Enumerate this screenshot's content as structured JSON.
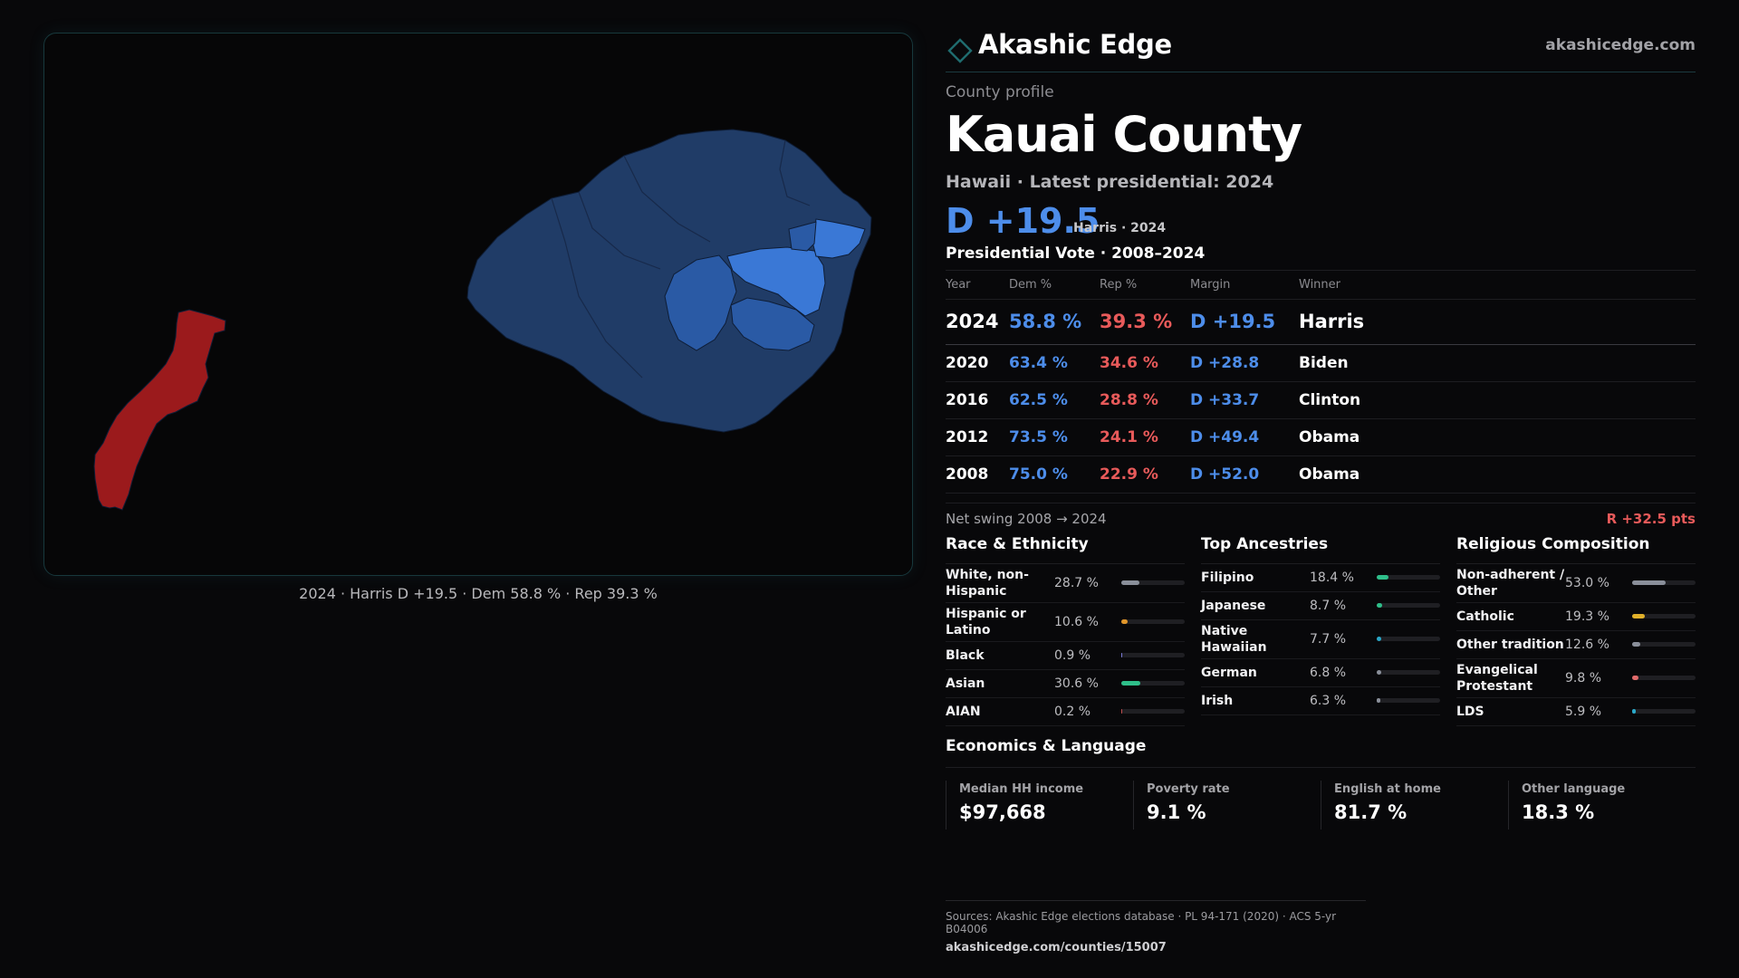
{
  "brand": {
    "name": "Akashic Edge",
    "url": "akashicedge.com"
  },
  "profile": {
    "eyebrow": "County profile",
    "county": "Kauai County",
    "subline": "Hawaii · Latest presidential: 2024",
    "headline_margin": "D +19.5",
    "headline_note": "Harris · 2024"
  },
  "map": {
    "caption": "2024 · Harris D +19.5 · Dem 58.8 % · Rep 39.3 %",
    "colors": {
      "dem_dark": "#203c67",
      "dem_mid": "#2a5aa5",
      "dem_bright": "#3a78d6",
      "rep": "#9b1a1c"
    }
  },
  "votes": {
    "title": "Presidential Vote · 2008–2024",
    "headers": {
      "year": "Year",
      "dem": "Dem %",
      "rep": "Rep %",
      "margin": "Margin",
      "winner": "Winner"
    },
    "rows": [
      {
        "year": "2024",
        "dem": "58.8 %",
        "rep": "39.3 %",
        "margin": "D +19.5",
        "winner": "Harris"
      },
      {
        "year": "2020",
        "dem": "63.4 %",
        "rep": "34.6 %",
        "margin": "D +28.8",
        "winner": "Biden"
      },
      {
        "year": "2016",
        "dem": "62.5 %",
        "rep": "28.8 %",
        "margin": "D +33.7",
        "winner": "Clinton"
      },
      {
        "year": "2012",
        "dem": "73.5 %",
        "rep": "24.1 %",
        "margin": "D +49.4",
        "winner": "Obama"
      },
      {
        "year": "2008",
        "dem": "75.0 %",
        "rep": "22.9 %",
        "margin": "D +52.0",
        "winner": "Obama"
      }
    ]
  },
  "swing": {
    "label": "Net swing 2008 → 2024",
    "value": "R +32.5 pts"
  },
  "race": {
    "title": "Race & Ethnicity",
    "items": [
      {
        "label": "White, non-Hispanic",
        "pct": "28.7 %",
        "value": 28.7,
        "color": "#8a8f9a"
      },
      {
        "label": "Hispanic or Latino",
        "pct": "10.6 %",
        "value": 10.6,
        "color": "#e0962a"
      },
      {
        "label": "Black",
        "pct": "0.9 %",
        "value": 0.9,
        "color": "#7c7cd8"
      },
      {
        "label": "Asian",
        "pct": "30.6 %",
        "value": 30.6,
        "color": "#2fbf8a"
      },
      {
        "label": "AIAN",
        "pct": "0.2 %",
        "value": 0.2,
        "color": "#c05050"
      }
    ]
  },
  "ancestry": {
    "title": "Top Ancestries",
    "items": [
      {
        "label": "Filipino",
        "pct": "18.4 %",
        "value": 18.4,
        "color": "#2fbf8a"
      },
      {
        "label": "Japanese",
        "pct": "8.7 %",
        "value": 8.7,
        "color": "#2fbf8a"
      },
      {
        "label": "Native Hawaiian",
        "pct": "7.7 %",
        "value": 7.7,
        "color": "#2aa8c8"
      },
      {
        "label": "German",
        "pct": "6.8 %",
        "value": 6.8,
        "color": "#8a8f9a"
      },
      {
        "label": "Irish",
        "pct": "6.3 %",
        "value": 6.3,
        "color": "#8a8f9a"
      }
    ]
  },
  "religion": {
    "title": "Religious Composition",
    "items": [
      {
        "label": "Non-adherent / Other",
        "pct": "53.0 %",
        "value": 53.0,
        "color": "#8a8f9a"
      },
      {
        "label": "Catholic",
        "pct": "19.3 %",
        "value": 19.3,
        "color": "#e0b02a"
      },
      {
        "label": "Other tradition",
        "pct": "12.6 %",
        "value": 12.6,
        "color": "#8a8f9a"
      },
      {
        "label": "Evangelical Protestant",
        "pct": "9.8 %",
        "value": 9.8,
        "color": "#e06a6a"
      },
      {
        "label": "LDS",
        "pct": "5.9 %",
        "value": 5.9,
        "color": "#2aa8c8"
      }
    ]
  },
  "economics": {
    "title": "Economics & Language",
    "stats": [
      {
        "label": "Median HH income",
        "value": "$97,668"
      },
      {
        "label": "Poverty rate",
        "value": "9.1 %"
      },
      {
        "label": "English at home",
        "value": "81.7 %"
      },
      {
        "label": "Other language",
        "value": "18.3 %"
      }
    ]
  },
  "sources": {
    "text": "Sources: Akashic Edge elections database · PL 94-171 (2020) · ACS 5-yr B04006",
    "link": "akashicedge.com/counties/15007"
  }
}
